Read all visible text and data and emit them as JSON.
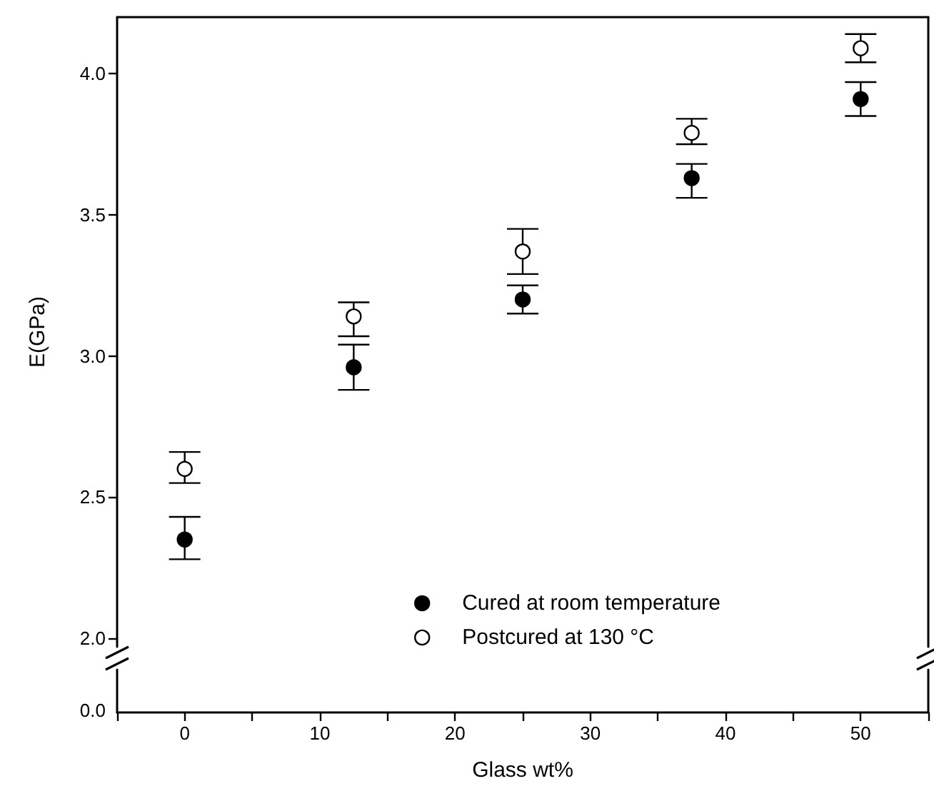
{
  "chart_data": {
    "type": "scatter",
    "xlabel": "Glass wt%",
    "ylabel": "E(GPa)",
    "annotations": [
      "0.0"
    ],
    "x": [
      0,
      12.5,
      25,
      37.5,
      50
    ],
    "xlim": [
      -5,
      55
    ],
    "xticks": [
      0,
      10,
      20,
      30,
      40,
      50
    ],
    "ylim": [
      1.97,
      4.2
    ],
    "yticks": [
      {
        "value": 2,
        "label": "2.0"
      },
      {
        "value": 2.5,
        "label": "2.5"
      },
      {
        "value": 3,
        "label": "3.0"
      },
      {
        "value": 3.5,
        "label": "3.5"
      },
      {
        "value": 4,
        "label": "4.0"
      }
    ],
    "legend": "bottom",
    "marker": "circle",
    "grid": false,
    "series": [
      {
        "name": "Cured at room temperature",
        "color": "#000000",
        "values": [
          2.35,
          2.96,
          3.2,
          3.63,
          3.91
        ],
        "errors": [
          [
            2.28,
            2.43
          ],
          [
            2.88,
            3.04
          ],
          [
            3.15,
            3.25
          ],
          [
            3.56,
            3.68
          ],
          [
            3.85,
            3.97
          ]
        ]
      },
      {
        "name": "Postcured at 130 °C",
        "color": "#ffffff",
        "values": [
          2.6,
          3.14,
          3.37,
          3.79,
          4.09
        ],
        "errors": [
          [
            2.55,
            2.66
          ],
          [
            3.07,
            3.19
          ],
          [
            3.29,
            3.45
          ],
          [
            3.75,
            3.84
          ],
          [
            4.04,
            4.14
          ]
        ]
      }
    ]
  }
}
